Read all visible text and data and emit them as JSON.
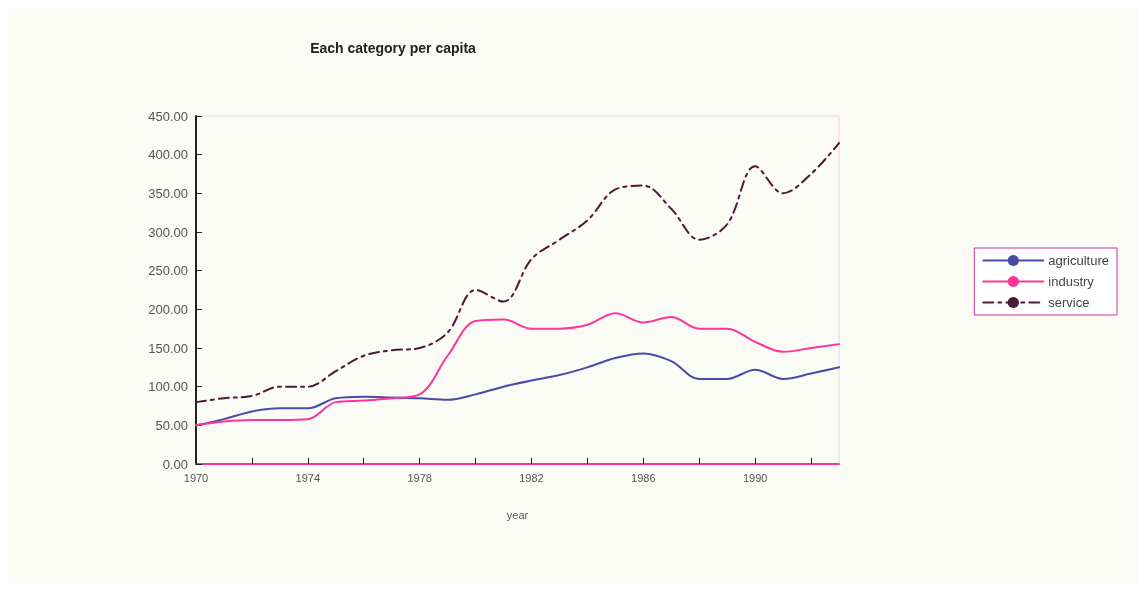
{
  "chart_data": {
    "type": "line",
    "title": "Each category per capita",
    "xlabel": "year",
    "x": [
      1970,
      1971,
      1972,
      1973,
      1974,
      1975,
      1976,
      1977,
      1978,
      1979,
      1980,
      1981,
      1982,
      1983,
      1984,
      1985,
      1986,
      1987,
      1988,
      1989,
      1990,
      1991,
      1992,
      1993
    ],
    "series": [
      {
        "name": "agriculture",
        "color": "#4a4aa8",
        "line_style": "solid",
        "values": [
          50,
          58,
          68,
          72,
          72,
          85,
          87,
          86,
          85,
          83,
          90,
          100,
          108,
          115,
          125,
          137,
          143,
          133,
          110,
          110,
          122,
          110,
          117,
          125
        ]
      },
      {
        "name": "industry",
        "color": "#ff3399",
        "line_style": "solid",
        "values": [
          50,
          55,
          57,
          57,
          58,
          80,
          82,
          85,
          90,
          140,
          185,
          187,
          175,
          175,
          180,
          195,
          183,
          190,
          175,
          175,
          158,
          145,
          150,
          155
        ]
      },
      {
        "name": "service",
        "color": "#4a1a3a",
        "line_style": "dashed",
        "values": [
          80,
          85,
          88,
          100,
          100,
          120,
          140,
          147,
          150,
          170,
          225,
          210,
          265,
          290,
          315,
          355,
          360,
          330,
          290,
          310,
          385,
          350,
          375,
          415
        ]
      }
    ],
    "xlim": [
      1970,
      1993
    ],
    "xticks": [
      1970,
      {
        "value": 1972,
        "label": null
      },
      1974,
      {
        "value": 1976,
        "label": null
      },
      1978,
      {
        "value": 1980,
        "label": null
      },
      1982,
      {
        "value": 1984,
        "label": null
      },
      1986,
      {
        "value": 1988,
        "label": null
      },
      1990,
      {
        "value": 1992,
        "label": null
      }
    ],
    "ylim": [
      0,
      450
    ],
    "yticks": [
      {
        "value": 0,
        "label": "0.00"
      },
      {
        "value": 50,
        "label": "50.00"
      },
      {
        "value": 100,
        "label": "100.00"
      },
      {
        "value": 150,
        "label": "150.00"
      },
      {
        "value": 200,
        "label": "200.00"
      },
      {
        "value": 250,
        "label": "250.00"
      },
      {
        "value": 300,
        "label": "300.00"
      },
      {
        "value": 350,
        "label": "350.00"
      },
      {
        "value": 400,
        "label": "400.00"
      },
      {
        "value": 450,
        "label": "450.00"
      }
    ],
    "grid": false,
    "legend": "right",
    "marker": "none"
  }
}
